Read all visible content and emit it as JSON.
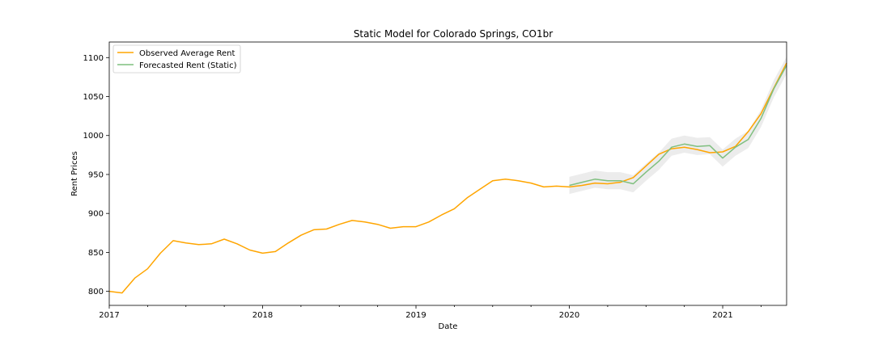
{
  "chart_data": {
    "type": "line",
    "title": "Static Model for Colorado Springs, CO1br",
    "xlabel": "Date",
    "ylabel": "Rent Prices",
    "xlim": [
      "2017-01",
      "2021-06"
    ],
    "ylim": [
      782,
      1120
    ],
    "x_ticks": [
      "2017",
      "2018",
      "2019",
      "2020",
      "2021"
    ],
    "y_ticks": [
      800,
      850,
      900,
      950,
      1000,
      1050,
      1100
    ],
    "grid": false,
    "legend_position": "top-left",
    "colors": {
      "observed": "#ffa500",
      "forecast": "#7fbf7f",
      "band": "#d9d9d9"
    },
    "series": [
      {
        "name": "Observed Average Rent",
        "x": [
          "2017-01",
          "2017-02",
          "2017-03",
          "2017-04",
          "2017-05",
          "2017-06",
          "2017-07",
          "2017-08",
          "2017-09",
          "2017-10",
          "2017-11",
          "2017-12",
          "2018-01",
          "2018-02",
          "2018-03",
          "2018-04",
          "2018-05",
          "2018-06",
          "2018-07",
          "2018-08",
          "2018-09",
          "2018-10",
          "2018-11",
          "2018-12",
          "2019-01",
          "2019-02",
          "2019-03",
          "2019-04",
          "2019-05",
          "2019-06",
          "2019-07",
          "2019-08",
          "2019-09",
          "2019-10",
          "2019-11",
          "2019-12",
          "2020-01",
          "2020-02",
          "2020-03",
          "2020-04",
          "2020-05",
          "2020-06",
          "2020-07",
          "2020-08",
          "2020-09",
          "2020-10",
          "2020-11",
          "2020-12",
          "2021-01",
          "2021-02",
          "2021-03",
          "2021-04",
          "2021-05",
          "2021-06"
        ],
        "values": [
          800,
          798,
          817,
          829,
          849,
          865,
          862,
          860,
          861,
          867,
          861,
          853,
          849,
          851,
          862,
          872,
          879,
          880,
          886,
          891,
          889,
          886,
          881,
          883,
          883,
          889,
          898,
          906,
          920,
          931,
          942,
          944,
          942,
          939,
          934,
          935,
          934,
          936,
          939,
          938,
          940,
          946,
          961,
          976,
          983,
          985,
          982,
          978,
          979,
          986,
          1005,
          1028,
          1061,
          1093
        ]
      },
      {
        "name": "Forecasted Rent (Static)",
        "x": [
          "2020-01",
          "2020-02",
          "2020-03",
          "2020-04",
          "2020-05",
          "2020-06",
          "2020-07",
          "2020-08",
          "2020-09",
          "2020-10",
          "2020-11",
          "2020-12",
          "2021-01",
          "2021-02",
          "2021-03",
          "2021-04",
          "2021-05",
          "2021-06"
        ],
        "values": [
          936,
          940,
          944,
          942,
          942,
          938,
          953,
          967,
          985,
          989,
          986,
          987,
          971,
          985,
          995,
          1022,
          1060,
          1090
        ],
        "lower": [
          925,
          929,
          933,
          931,
          931,
          927,
          942,
          956,
          974,
          978,
          975,
          976,
          960,
          974,
          984,
          1011,
          1049,
          1079
        ],
        "upper": [
          947,
          951,
          955,
          953,
          953,
          949,
          964,
          978,
          996,
          1000,
          997,
          998,
          982,
          996,
          1006,
          1033,
          1071,
          1101
        ]
      }
    ]
  }
}
